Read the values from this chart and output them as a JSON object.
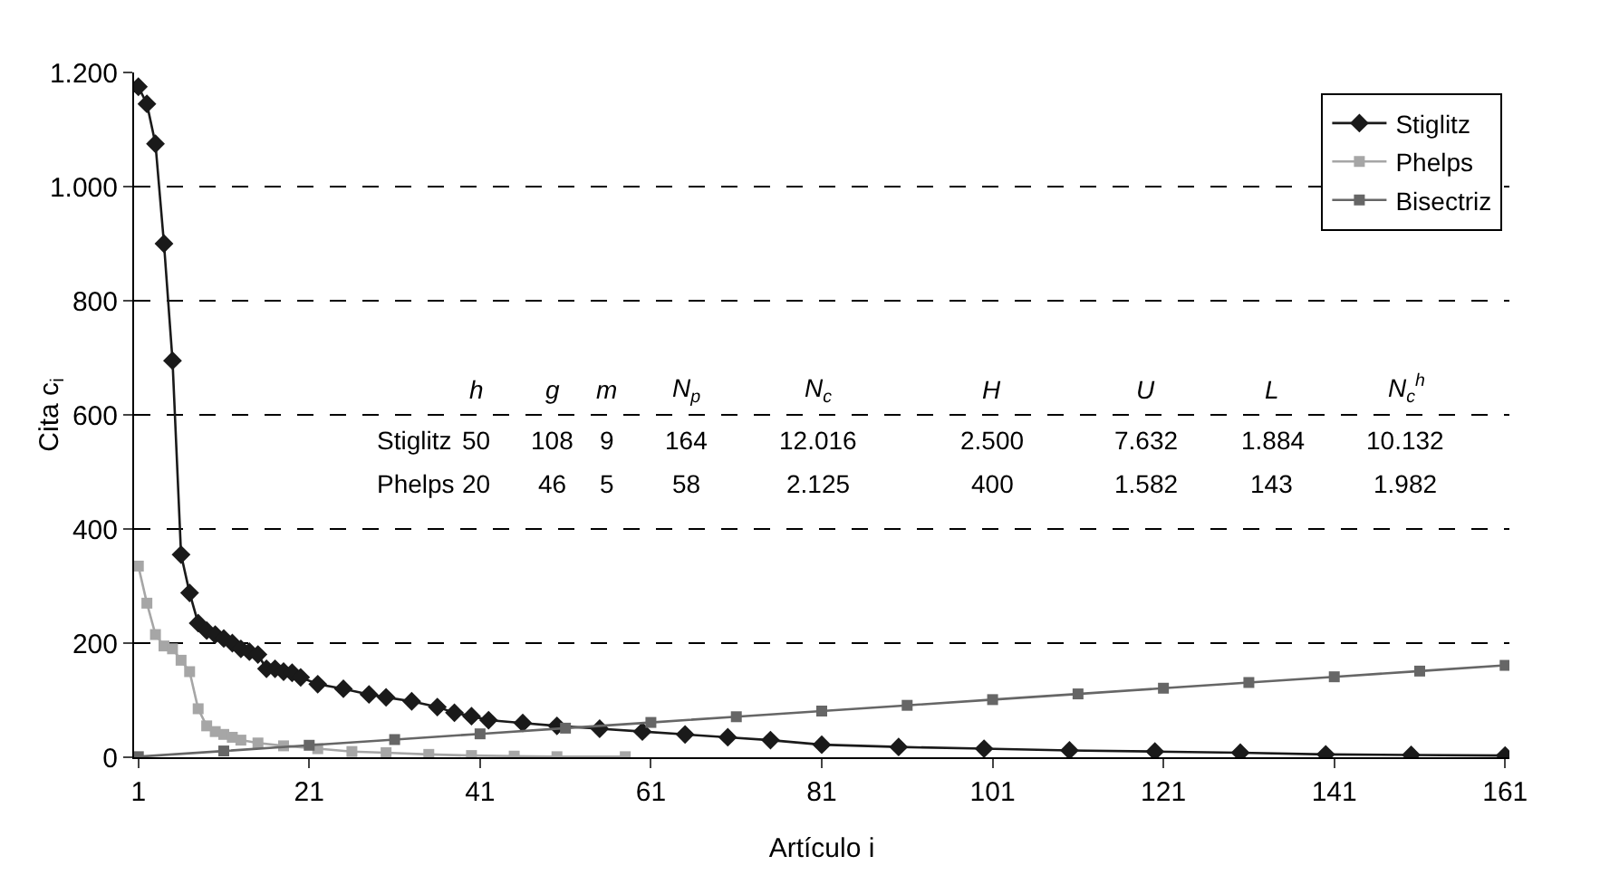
{
  "chart_data": {
    "type": "line",
    "xlabel": "Artículo i",
    "ylabel": "Cita c$_{i}$",
    "xlim": [
      0.5,
      161.5
    ],
    "xticks": [
      1,
      21,
      41,
      61,
      81,
      101,
      121,
      141,
      161
    ],
    "ylim": [
      0,
      1200
    ],
    "yticks": [
      0,
      {
        "value": 200,
        "label": "200"
      },
      {
        "value": 400,
        "label": "400"
      },
      {
        "value": 600,
        "label": "600"
      },
      {
        "value": 800,
        "label": "800"
      },
      {
        "value": 1000,
        "label": "1.000"
      },
      {
        "value": 1200,
        "label": "1.200"
      }
    ],
    "grid": "y",
    "legend": "top right",
    "line_style": "solid",
    "series": [
      {
        "name": "Stiglitz",
        "color": "#1a1a1a",
        "marker": "diamond",
        "x": [
          1,
          2,
          3,
          4,
          5,
          6,
          7,
          8,
          9,
          10,
          11,
          12,
          13,
          14,
          15,
          16,
          17,
          18,
          19,
          20,
          22,
          25,
          28,
          30,
          33,
          36,
          38,
          40,
          42,
          46,
          50,
          55,
          60,
          65,
          70,
          75,
          81,
          90,
          100,
          110,
          120,
          130,
          140,
          150,
          161
        ],
        "values": [
          1175,
          1145,
          1075,
          900,
          695,
          355,
          288,
          235,
          222,
          215,
          208,
          200,
          190,
          185,
          180,
          155,
          155,
          150,
          148,
          140,
          128,
          120,
          110,
          105,
          98,
          88,
          78,
          72,
          65,
          60,
          55,
          50,
          45,
          40,
          35,
          30,
          22,
          18,
          15,
          12,
          10,
          8,
          5,
          4,
          3
        ]
      },
      {
        "name": "Phelps",
        "color": "#a6a6a6",
        "marker": "square",
        "x": [
          1,
          2,
          3,
          4,
          5,
          6,
          7,
          8,
          9,
          10,
          11,
          12,
          13,
          15,
          18,
          22,
          26,
          30,
          35,
          40,
          45,
          50,
          58
        ],
        "values": [
          335,
          270,
          215,
          195,
          190,
          170,
          150,
          85,
          55,
          45,
          40,
          35,
          30,
          25,
          20,
          15,
          10,
          8,
          5,
          3,
          2,
          1,
          1
        ]
      },
      {
        "name": "Bisectriz",
        "color": "#666666",
        "marker": "square",
        "x": [
          1,
          11,
          21,
          31,
          41,
          51,
          61,
          71,
          81,
          91,
          101,
          111,
          121,
          131,
          141,
          151,
          161
        ],
        "values": [
          1,
          11,
          21,
          31,
          41,
          51,
          61,
          71,
          81,
          91,
          101,
          111,
          121,
          131,
          141,
          151,
          161
        ]
      }
    ],
    "annotations": [
      "h",
      "g",
      "m",
      "N$_{p}$",
      "N$_{c}$",
      "H",
      "U",
      "L",
      "N$_{c}$$^{h}$",
      "Stiglitz",
      "50",
      "108",
      "9",
      "164",
      "12.016",
      "2.500",
      "7.632",
      "1.884",
      "10.132",
      "Phelps",
      "20",
      "46",
      "5",
      "58",
      "2.125",
      "400",
      "1.582",
      "143",
      "1.982"
    ]
  }
}
